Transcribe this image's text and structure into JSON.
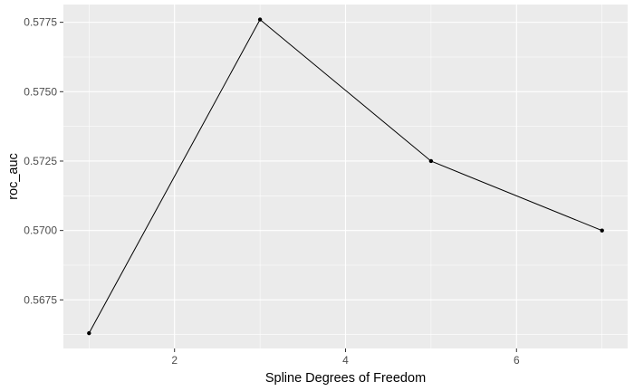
{
  "chart_data": {
    "type": "line",
    "xlabel": "Spline Degrees of Freedom",
    "ylabel": "roc_auc",
    "x": [
      1,
      3,
      5,
      7
    ],
    "y": [
      0.5663,
      0.5776,
      0.5725,
      0.57
    ],
    "xlim": [
      0.7,
      7.3
    ],
    "ylim": [
      0.56575,
      0.57814
    ],
    "xticks": [
      2,
      4,
      6
    ],
    "xtick_labels": [
      "2",
      "4",
      "6"
    ],
    "yticks": [
      0.5675,
      0.57,
      0.5725,
      0.575,
      0.5775
    ],
    "ytick_labels": [
      "0.5675",
      "0.5700",
      "0.5725",
      "0.5750",
      "0.5775"
    ],
    "grid": true,
    "legend": "none",
    "colors": {
      "panel_background": "#ebebeb",
      "grid_major": "#ffffff",
      "line": "#000000",
      "points": "#000000",
      "tick_label": "#4d4d4d"
    }
  }
}
